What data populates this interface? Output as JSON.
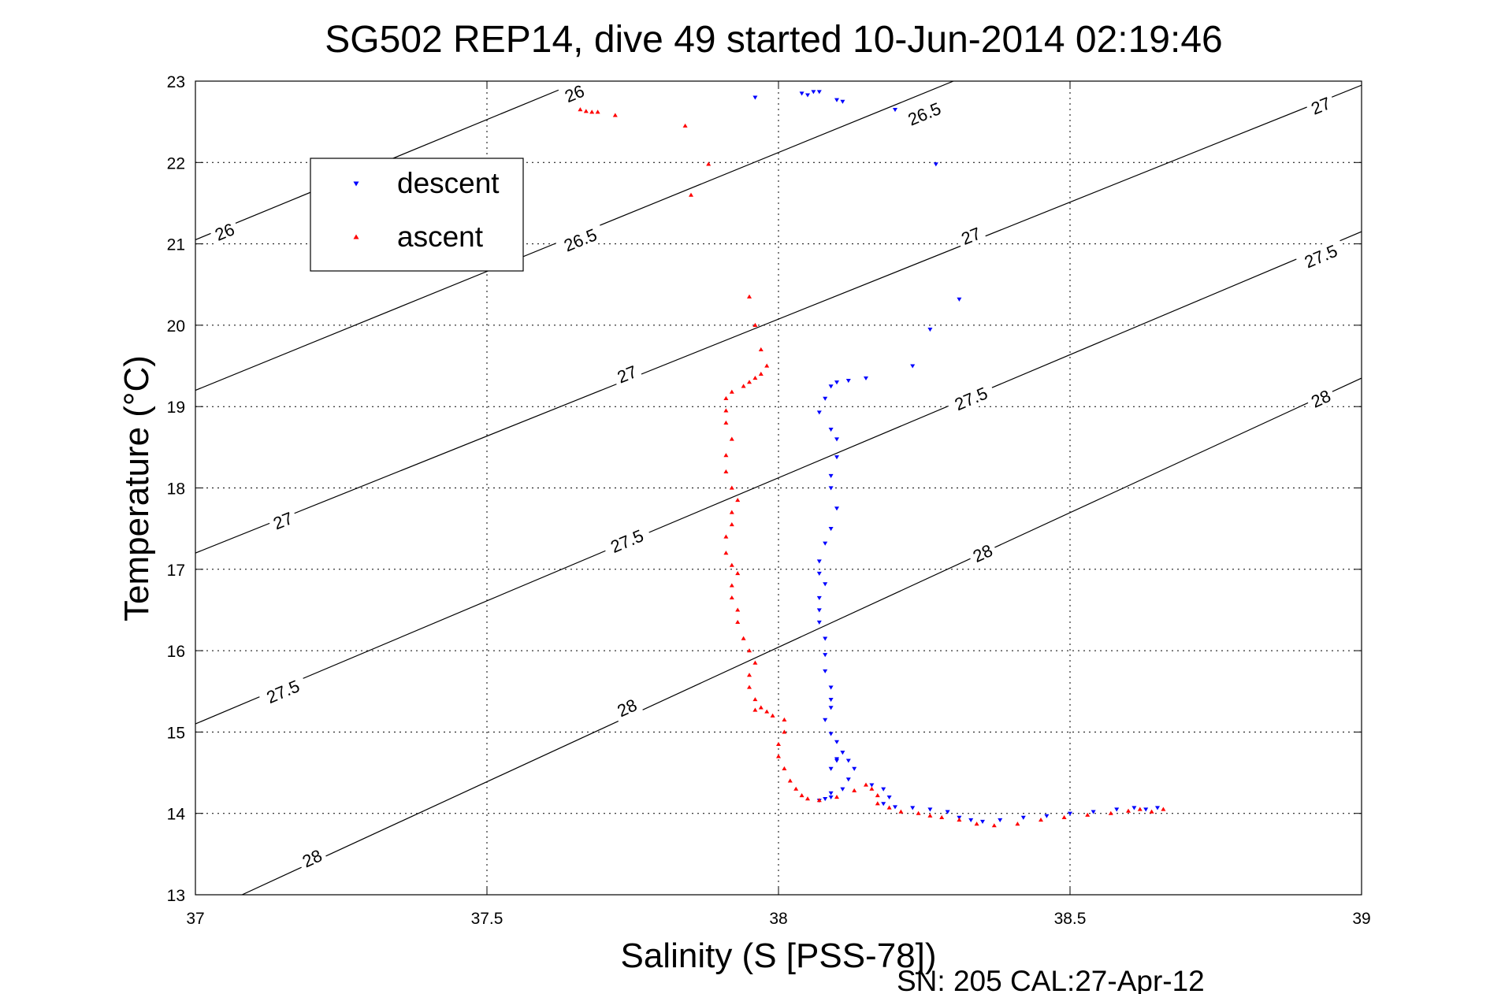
{
  "figure": {
    "title": "SG502 REP14, dive 49 started 10-Jun-2014 02:19:46",
    "footer": "SN: 205  CAL:27-Apr-12"
  },
  "legend": {
    "items": [
      {
        "label": "descent",
        "color": "#0000ff",
        "marker": "triangle-down"
      },
      {
        "label": "ascent",
        "color": "#ff0000",
        "marker": "triangle-up"
      }
    ],
    "placement": "upper-left"
  },
  "chart_data": {
    "type": "scatter",
    "title": "SG502 REP14, dive 49 started 10-Jun-2014 02:19:46",
    "xlabel": "Salinity (S [PSS-78])",
    "ylabel": "Temperature (°C)",
    "xlim": [
      37,
      39
    ],
    "ylim": [
      13,
      23
    ],
    "xticks": [
      37,
      37.5,
      38,
      38.5,
      39
    ],
    "xtick_labels": [
      "37",
      "37.5",
      "38",
      "38.5",
      "39"
    ],
    "yticks": [
      13,
      14,
      15,
      16,
      17,
      18,
      19,
      20,
      21,
      22,
      23
    ],
    "ytick_labels": [
      "13",
      "14",
      "15",
      "16",
      "17",
      "18",
      "19",
      "20",
      "21",
      "22",
      "23"
    ],
    "grid": true,
    "contours": [
      {
        "level": "26",
        "color": "#000000",
        "points": [
          [
            37,
            21.05
          ],
          [
            37.66,
            23.0
          ]
        ],
        "labels": [
          [
            37.05,
            21.15
          ],
          [
            37.65,
            22.85
          ]
        ]
      },
      {
        "level": "26.5",
        "color": "#000000",
        "points": [
          [
            37,
            19.2
          ],
          [
            38.3,
            23.0
          ]
        ],
        "labels": [
          [
            37.66,
            21.05
          ],
          [
            38.25,
            22.6
          ]
        ]
      },
      {
        "level": "27",
        "color": "#000000",
        "points": [
          [
            37,
            17.2
          ],
          [
            39,
            22.95
          ]
        ],
        "labels": [
          [
            37.15,
            17.6
          ],
          [
            37.74,
            19.4
          ],
          [
            38.33,
            21.1
          ],
          [
            38.93,
            22.7
          ]
        ]
      },
      {
        "level": "27.5",
        "color": "#000000",
        "points": [
          [
            37,
            15.1
          ],
          [
            39,
            21.15
          ]
        ],
        "labels": [
          [
            37.15,
            15.5
          ],
          [
            37.74,
            17.35
          ],
          [
            38.33,
            19.1
          ],
          [
            38.93,
            20.85
          ]
        ]
      },
      {
        "level": "28",
        "color": "#000000",
        "points": [
          [
            37.08,
            13.0
          ],
          [
            39,
            19.35
          ]
        ],
        "labels": [
          [
            37.2,
            13.45
          ],
          [
            37.74,
            15.3
          ],
          [
            38.35,
            17.2
          ],
          [
            38.93,
            19.1
          ]
        ]
      }
    ],
    "series": [
      {
        "name": "descent",
        "color": "#0000ff",
        "marker": "triangle-down",
        "x": [
          37.96,
          38.04,
          38.05,
          38.06,
          38.07,
          38.1,
          38.11,
          38.2,
          38.27,
          38.31,
          38.26,
          38.23,
          38.15,
          38.12,
          38.1,
          38.09,
          38.08,
          38.07,
          38.09,
          38.1,
          38.1,
          38.09,
          38.09,
          38.1,
          38.09,
          38.08,
          38.07,
          38.07,
          38.08,
          38.07,
          38.07,
          38.07,
          38.08,
          38.08,
          38.08,
          38.09,
          38.09,
          38.09,
          38.08,
          38.09,
          38.1,
          38.11,
          38.1,
          38.09,
          38.1,
          38.12,
          38.13,
          38.12,
          38.11,
          38.09,
          38.07,
          38.08,
          38.09,
          38.16,
          38.18,
          38.19,
          38.18,
          38.2,
          38.23,
          38.26,
          38.29,
          38.31,
          38.33,
          38.35,
          38.38,
          38.42,
          38.46,
          38.5,
          38.54,
          38.58,
          38.61,
          38.63,
          38.65
        ],
        "y": [
          22.8,
          22.85,
          22.83,
          22.87,
          22.87,
          22.77,
          22.75,
          22.65,
          21.98,
          20.32,
          19.95,
          19.5,
          19.35,
          19.32,
          19.3,
          19.25,
          19.1,
          18.93,
          18.72,
          18.6,
          18.38,
          18.15,
          18.0,
          17.75,
          17.5,
          17.32,
          17.1,
          16.95,
          16.82,
          16.65,
          16.5,
          16.35,
          16.15,
          15.95,
          15.75,
          15.55,
          15.4,
          15.3,
          15.15,
          14.98,
          14.88,
          14.75,
          14.65,
          14.55,
          14.67,
          14.65,
          14.55,
          14.42,
          14.3,
          14.2,
          14.16,
          14.18,
          14.25,
          14.35,
          14.3,
          14.2,
          14.12,
          14.08,
          14.07,
          14.05,
          14.02,
          13.95,
          13.92,
          13.9,
          13.92,
          13.95,
          13.97,
          14.0,
          14.02,
          14.05,
          14.07,
          14.05,
          14.07
        ]
      },
      {
        "name": "ascent",
        "color": "#ff0000",
        "marker": "triangle-up",
        "x": [
          37.66,
          37.67,
          37.68,
          37.69,
          37.72,
          37.84,
          37.88,
          37.85,
          37.95,
          37.96,
          37.97,
          37.98,
          37.97,
          37.96,
          37.95,
          37.94,
          37.92,
          37.91,
          37.91,
          37.91,
          37.92,
          37.91,
          37.91,
          37.92,
          37.93,
          37.92,
          37.92,
          37.91,
          37.91,
          37.92,
          37.93,
          37.92,
          37.92,
          37.93,
          37.93,
          37.94,
          37.95,
          37.96,
          37.95,
          37.95,
          37.96,
          37.96,
          37.97,
          37.98,
          37.99,
          38.01,
          38.01,
          38.0,
          38.0,
          38.01,
          38.02,
          38.03,
          38.04,
          38.05,
          38.07,
          38.1,
          38.13,
          38.15,
          38.16,
          38.17,
          38.17,
          38.19,
          38.21,
          38.24,
          38.26,
          38.28,
          38.31,
          38.34,
          38.37,
          38.41,
          38.45,
          38.49,
          38.53,
          38.57,
          38.6,
          38.62,
          38.64,
          38.66
        ],
        "y": [
          22.65,
          22.63,
          22.62,
          22.62,
          22.58,
          22.45,
          21.98,
          21.6,
          20.35,
          20.0,
          19.7,
          19.5,
          19.4,
          19.35,
          19.3,
          19.25,
          19.18,
          19.1,
          18.95,
          18.8,
          18.6,
          18.4,
          18.2,
          18.0,
          17.85,
          17.7,
          17.55,
          17.4,
          17.2,
          17.05,
          16.95,
          16.8,
          16.65,
          16.5,
          16.35,
          16.15,
          16.0,
          15.85,
          15.7,
          15.55,
          15.4,
          15.27,
          15.3,
          15.25,
          15.2,
          15.15,
          15.0,
          14.85,
          14.7,
          14.55,
          14.4,
          14.3,
          14.22,
          14.18,
          14.16,
          14.2,
          14.28,
          14.35,
          14.3,
          14.22,
          14.12,
          14.07,
          14.02,
          14.0,
          13.97,
          13.95,
          13.92,
          13.87,
          13.85,
          13.87,
          13.92,
          13.95,
          13.98,
          14.0,
          14.03,
          14.05,
          14.02,
          14.05
        ]
      }
    ]
  }
}
